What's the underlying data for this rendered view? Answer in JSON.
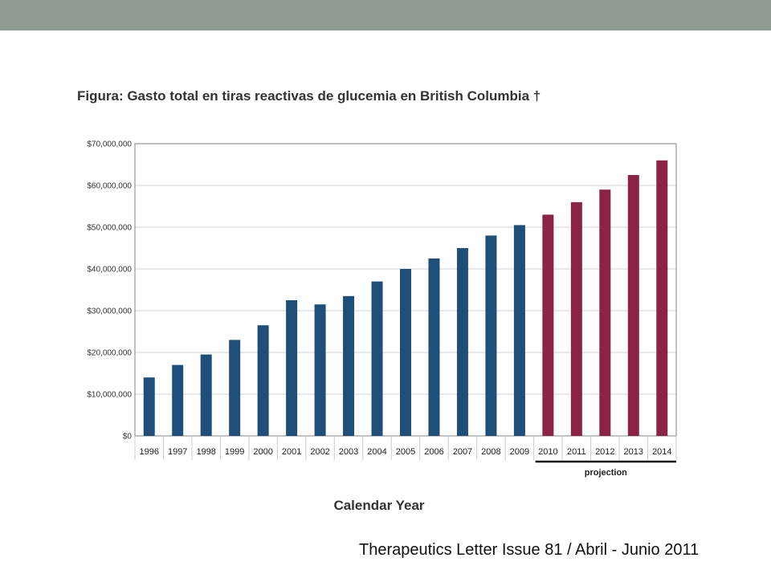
{
  "slide": {
    "footer": "Therapeutics Letter Issue 81 / Abril - Junio 2011"
  },
  "colors": {
    "top_band": "#8f9b91",
    "actual_bar": "#1f4e79",
    "projection_bar": "#8b2344",
    "grid": "#d9d9d9",
    "frame": "#999999"
  },
  "chart_data": {
    "type": "bar",
    "title": "Figura: Gasto total en tiras reactivas de glucemia en British Columbia †",
    "xlabel": "Calendar Year",
    "ylabel": "",
    "ylim": [
      0,
      70000000
    ],
    "yticks": [
      0,
      10000000,
      20000000,
      30000000,
      40000000,
      50000000,
      60000000,
      70000000
    ],
    "ytick_labels": [
      "$0",
      "$10,000,000",
      "$20,000,000",
      "$30,000,000",
      "$40,000,000",
      "$50,000,000",
      "$60,000,000",
      "$70,000,000"
    ],
    "grid": true,
    "categories": [
      "1996",
      "1997",
      "1998",
      "1999",
      "2000",
      "2001",
      "2002",
      "2003",
      "2004",
      "2005",
      "2006",
      "2007",
      "2008",
      "2009",
      "2010",
      "2011",
      "2012",
      "2013",
      "2014"
    ],
    "values": [
      14000000,
      17000000,
      19500000,
      23000000,
      26500000,
      32500000,
      31500000,
      33500000,
      37000000,
      40000000,
      42500000,
      45000000,
      48000000,
      50500000,
      53000000,
      56000000,
      59000000,
      62500000,
      66000000
    ],
    "projection_label": "projection",
    "projection_categories": [
      "2010",
      "2011",
      "2012",
      "2013",
      "2014"
    ]
  }
}
